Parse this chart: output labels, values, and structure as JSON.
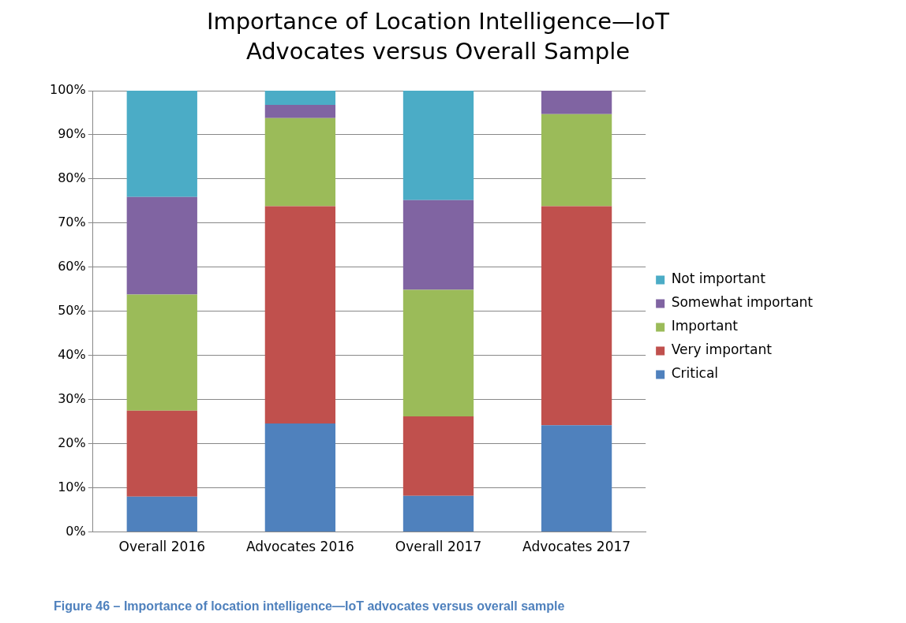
{
  "chart_data": {
    "type": "bar",
    "title": "Importance of Location Intelligence—IoT Advocates versus Overall Sample",
    "categories": [
      "Overall 2016",
      "Advocates 2016",
      "Overall 2017",
      "Advocates 2017"
    ],
    "stacked": true,
    "series": [
      {
        "name": "Critical",
        "color": "#4f81bd",
        "values": [
          8,
          24.6,
          8.2,
          24.2
        ]
      },
      {
        "name": "Very important",
        "color": "#c0504d",
        "values": [
          19.5,
          49.2,
          18,
          49.6
        ]
      },
      {
        "name": "Important",
        "color": "#9bbb59",
        "values": [
          26.3,
          20,
          28.7,
          20.9
        ]
      },
      {
        "name": "Somewhat important",
        "color": "#8064a2",
        "values": [
          22.1,
          3,
          20.3,
          5.3
        ]
      },
      {
        "name": "Not important",
        "color": "#4bacc6",
        "values": [
          24.1,
          3.2,
          24.8,
          0
        ]
      }
    ],
    "ylim": [
      0,
      100
    ],
    "yticks": [
      {
        "value": 0,
        "label": "0%"
      },
      {
        "value": 10,
        "label": "10%"
      },
      {
        "value": 20,
        "label": "20%"
      },
      {
        "value": 30,
        "label": "30%"
      },
      {
        "value": 40,
        "label": "40%"
      },
      {
        "value": 50,
        "label": "50%"
      },
      {
        "value": 60,
        "label": "60%"
      },
      {
        "value": 70,
        "label": "70%"
      },
      {
        "value": 80,
        "label": "80%"
      },
      {
        "value": 90,
        "label": "90%"
      },
      {
        "value": 100,
        "label": "100%"
      }
    ],
    "grid": "y",
    "legend": "right",
    "annotations": [
      "Figure 46 – Importance of location intelligence—IoT advocates versus overall sample"
    ]
  }
}
